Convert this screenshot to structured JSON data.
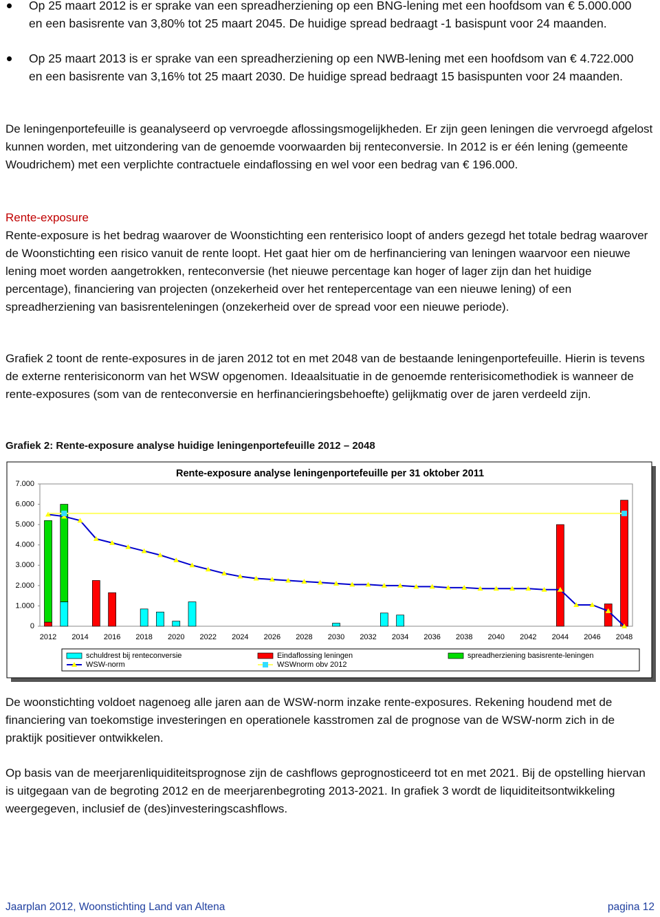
{
  "bullets": [
    "Op 25 maart 2012 is er sprake van een spreadherziening op een BNG-lening met een hoofdsom van € 5.000.000 en een basisrente van 3,80% tot 25 maart 2045. De huidige spread bedraagt -1 basispunt voor 24 maanden.",
    "Op 25 maart 2013 is er sprake van een spreadherziening op een NWB-lening met een hoofdsom van € 4.722.000 en een basisrente van 3,16% tot 25 maart 2030. De huidige spread bedraagt 15 basispunten voor 24 maanden."
  ],
  "paragraphs": [
    "De leningenportefeuille is geanalyseerd op vervroegde aflossingsmogelijkheden. Er zijn geen leningen die vervroegd afgelost kunnen worden, met uitzondering van de genoemde voorwaarden bij renteconversie. In 2012 is er één lening (gemeente Woudrichem) met een verplichte contractuele eindaflossing en wel voor een bedrag van € 196.000.",
    "Rente-exposure is het bedrag waarover de Woonstichting een renterisico loopt of anders gezegd het totale bedrag waarover de Woonstichting een risico vanuit de rente loopt. Het gaat hier om de herfinanciering van leningen waarvoor een nieuwe lening moet worden aangetrokken, renteconversie (het nieuwe percentage kan hoger of lager zijn dan het huidige percentage), financiering van projecten (onzekerheid over het rentepercentage van een nieuwe lening) of een spreadherziening van basisrenteleningen (onzekerheid over de spread voor een nieuwe periode).",
    "Grafiek 2 toont de rente-exposures in de jaren 2012 tot en met 2048 van de bestaande leningenportefeuille. Hierin is tevens de externe renterisiconorm van het WSW opgenomen. Ideaalsituatie in de genoemde renterisicomethodiek is wanneer de rente-exposures (som van de renteconversie en herfinancieringsbehoefte) gelijkmatig over de jaren verdeeld zijn.",
    "De woonstichting voldoet nagenoeg alle jaren aan de WSW-norm inzake rente-exposures. Rekening houdend met de financiering van toekomstige investeringen en operationele kasstromen zal de prognose van de WSW-norm zich in de praktijk positiever ontwikkelen.",
    "Op basis van de meerjarenliquiditeitsprognose zijn de cashflows geprognosticeerd tot en met 2021. Bij de opstelling hiervan is uitgegaan van de begroting 2012 en de meerjarenbegroting 2013-2021. In grafiek 3 wordt de liquiditeitsontwikkeling weergegeven, inclusief de (des)investeringscashflows."
  ],
  "heading": "Rente-exposure",
  "caption": "Grafiek 2: Rente-exposure  analyse huidige leningenportefeuille 2012 – 2048",
  "footer": {
    "left": "Jaarplan 2012, Woonstichting Land van Altena",
    "right": "pagina 12"
  },
  "chart_data": {
    "type": "bar",
    "stacked": true,
    "title": "Rente-exposure analyse leningenportefeuille per 31 oktober 2011",
    "categories": [
      "2012",
      null,
      "2014",
      null,
      "2016",
      null,
      "2018",
      null,
      "2020",
      null,
      "2022",
      null,
      "2024",
      null,
      "2026",
      null,
      "2028",
      null,
      "2030",
      null,
      "2032",
      null,
      "2034",
      null,
      "2036",
      null,
      "2038",
      null,
      "2040",
      null,
      "2042",
      null,
      "2044",
      null,
      "2046",
      null,
      "2048"
    ],
    "ylim": [
      0,
      7000
    ],
    "yticks": [
      0,
      {
        "value": 1000,
        "label": "1.000"
      },
      {
        "value": 2000,
        "label": "2.000"
      },
      {
        "value": 3000,
        "label": "3.000"
      },
      {
        "value": 4000,
        "label": "4.000"
      },
      {
        "value": 5000,
        "label": "5.000"
      },
      {
        "value": 6000,
        "label": "6.000"
      },
      {
        "value": 7000,
        "label": "7.000"
      }
    ],
    "series": [
      {
        "name": "schuldrest bij renteconversie",
        "type": "bar",
        "color": "#00ffff",
        "values": [
          null,
          1200,
          null,
          null,
          null,
          null,
          850,
          700,
          250,
          1200,
          null,
          null,
          null,
          null,
          null,
          null,
          null,
          null,
          150,
          null,
          null,
          650,
          550,
          null,
          null,
          null,
          null,
          null,
          null,
          null,
          null,
          null,
          null,
          null,
          null,
          null,
          null
        ]
      },
      {
        "name": "Eindaflossing leningen",
        "type": "bar",
        "color": "#ff0000",
        "values": [
          200,
          null,
          null,
          2250,
          1650,
          null,
          null,
          null,
          null,
          null,
          null,
          null,
          null,
          null,
          null,
          null,
          null,
          null,
          null,
          null,
          null,
          null,
          null,
          null,
          null,
          null,
          null,
          null,
          null,
          null,
          null,
          null,
          5000,
          null,
          null,
          1100,
          6200
        ]
      },
      {
        "name": "spreadherziening basisrente-leningen",
        "type": "bar",
        "color": "#00dd00",
        "values": [
          5000,
          4800,
          null,
          null,
          null,
          null,
          null,
          null,
          null,
          null,
          null,
          null,
          null,
          null,
          null,
          null,
          null,
          null,
          null,
          null,
          null,
          null,
          null,
          null,
          null,
          null,
          null,
          null,
          null,
          null,
          null,
          null,
          null,
          null,
          null,
          null,
          null
        ]
      },
      {
        "name": "WSW-norm",
        "type": "line",
        "color": "#0000cc",
        "marker": "triangle",
        "marker_color": "#ffff00",
        "values": [
          5500,
          5400,
          5200,
          4300,
          4100,
          3900,
          3700,
          3500,
          3250,
          3000,
          2800,
          2600,
          2450,
          2350,
          2300,
          2250,
          2200,
          2150,
          2100,
          2050,
          2050,
          2000,
          2000,
          1950,
          1950,
          1900,
          1900,
          1850,
          1850,
          1850,
          1850,
          1800,
          1800,
          1050,
          1050,
          750,
          0
        ]
      },
      {
        "name": "WSWnorm obv 2012",
        "type": "line",
        "color": "#ffff66",
        "marker": "square",
        "marker_color": "#33ddff",
        "values": [
          5550,
          5550,
          5550,
          5550,
          5550,
          5550,
          5550,
          5550,
          5550,
          5550,
          5550,
          5550,
          5550,
          5550,
          5550,
          5550,
          5550,
          5550,
          5550,
          5550,
          5550,
          5550,
          5550,
          5550,
          5550,
          5550,
          5550,
          5550,
          5550,
          5550,
          5550,
          5550,
          5550,
          5550,
          5550,
          5550,
          5550
        ]
      }
    ]
  }
}
